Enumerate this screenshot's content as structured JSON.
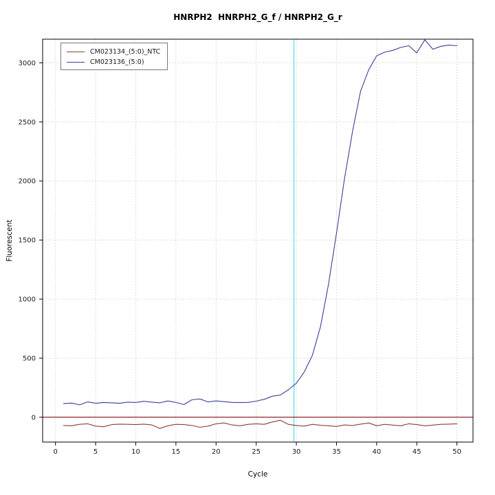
{
  "chart_data": {
    "type": "line",
    "title": "HNRPH2  HNRPH2_G_f / HNRPH2_G_r",
    "xlabel": "Cycle",
    "ylabel": "Fluorescent",
    "xlim": [
      -1.6,
      52
    ],
    "ylim": [
      -210,
      3200
    ],
    "x_ticks": [
      0,
      5,
      10,
      15,
      20,
      25,
      30,
      35,
      40,
      45,
      50
    ],
    "y_ticks": [
      0,
      500,
      1000,
      1500,
      2000,
      2500,
      3000
    ],
    "grid": true,
    "legend_position": "top-left",
    "threshold_line": {
      "y": 0,
      "color": "#8B2020"
    },
    "ct_line": {
      "x": 29.7,
      "color": "#5CDEE8"
    },
    "grid_color": "#cfcfcf",
    "x": [
      1,
      2,
      3,
      4,
      5,
      6,
      7,
      8,
      9,
      10,
      11,
      12,
      13,
      14,
      15,
      16,
      17,
      18,
      19,
      20,
      21,
      22,
      23,
      24,
      25,
      26,
      27,
      28,
      29,
      30,
      31,
      32,
      33,
      34,
      35,
      36,
      37,
      38,
      39,
      40,
      41,
      42,
      43,
      44,
      45,
      46,
      47,
      48,
      49,
      50
    ],
    "series": [
      {
        "name": "CM023134_(5:0)_NTC",
        "color": "#8B3A3A",
        "values": [
          -70,
          -72,
          -60,
          -55,
          -75,
          -80,
          -62,
          -58,
          -60,
          -62,
          -58,
          -65,
          -95,
          -72,
          -60,
          -62,
          -70,
          -85,
          -75,
          -55,
          -48,
          -65,
          -72,
          -60,
          -55,
          -60,
          -40,
          -25,
          -60,
          -70,
          -75,
          -60,
          -68,
          -72,
          -78,
          -65,
          -70,
          -58,
          -48,
          -72,
          -60,
          -66,
          -72,
          -55,
          -62,
          -72,
          -66,
          -60,
          -58,
          -55
        ]
      },
      {
        "name": "CM023136_(5:0)",
        "color": "#3A3F94",
        "values": [
          115,
          120,
          105,
          130,
          118,
          125,
          122,
          118,
          128,
          125,
          135,
          128,
          122,
          138,
          125,
          108,
          148,
          155,
          130,
          138,
          132,
          126,
          124,
          126,
          136,
          152,
          178,
          188,
          232,
          288,
          385,
          525,
          765,
          1125,
          1560,
          2020,
          2420,
          2760,
          2940,
          3060,
          3090,
          3105,
          3130,
          3145,
          3085,
          3195,
          3115,
          3140,
          3150,
          3145
        ]
      }
    ]
  }
}
